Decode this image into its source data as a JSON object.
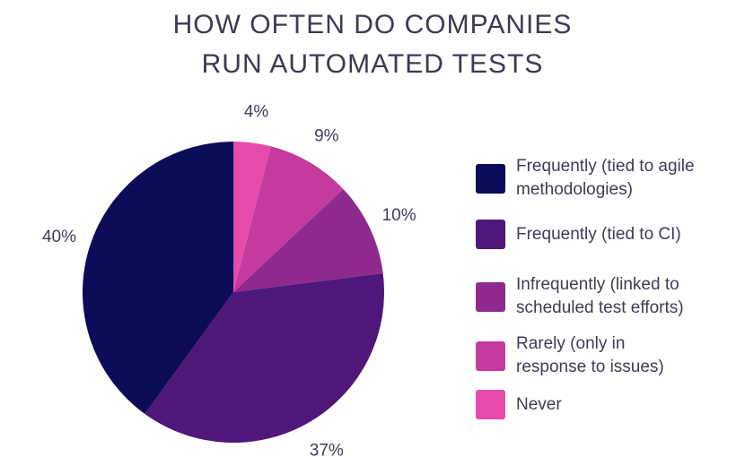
{
  "title": {
    "line1": "HOW OFTEN DO COMPANIES",
    "line2": "RUN AUTOMATED TESTS"
  },
  "chart_data": {
    "type": "pie",
    "title": "HOW OFTEN DO COMPANIES RUN AUTOMATED TESTS",
    "start": "12 o'clock",
    "direction": "clockwise",
    "slices": [
      {
        "label": "Never",
        "value": 4,
        "display": "4%",
        "color": "#e54bab"
      },
      {
        "label": "Rarely (only in response to issues)",
        "value": 9,
        "display": "9%",
        "color": "#c33b9e"
      },
      {
        "label": "Infrequently (linked to scheduled test efforts)",
        "value": 10,
        "display": "10%",
        "color": "#8e2a8e"
      },
      {
        "label": "Frequently (tied to CI)",
        "value": 37,
        "display": "37%",
        "color": "#4f177a"
      },
      {
        "label": "Frequently (tied to agile methodologies)",
        "value": 40,
        "display": "40%",
        "color": "#0b0b58"
      }
    ],
    "legend": {
      "placement": "right",
      "order": [
        "Frequently (tied to agile methodologies)",
        "Frequently (tied to CI)",
        "Infrequently (linked to scheduled test efforts)",
        "Rarely (only in response to issues)",
        "Never"
      ],
      "items": [
        {
          "label_lines": [
            "Frequently (tied to agile",
            "methodologies)"
          ],
          "color": "#0b0b58"
        },
        {
          "label_lines": [
            "Frequently (tied to CI)"
          ],
          "color": "#4f177a"
        },
        {
          "label_lines": [
            "Infrequently (linked to",
            "scheduled test efforts)"
          ],
          "color": "#8e2a8e"
        },
        {
          "label_lines": [
            "Rarely (only in",
            "response to issues)"
          ],
          "color": "#c33b9e"
        },
        {
          "label_lines": [
            "Never"
          ],
          "color": "#e54bab"
        }
      ]
    }
  }
}
